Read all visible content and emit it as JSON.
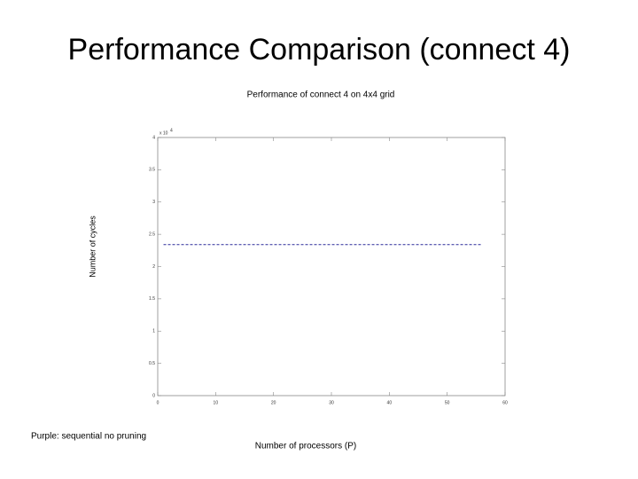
{
  "slide": {
    "title": "Performance Comparison (connect 4)",
    "note": "Purple: sequential no pruning"
  },
  "chart_data": {
    "type": "line",
    "title": "Performance of connect 4 on 4x4 grid",
    "xlabel": "Number of processors (P)",
    "ylabel": "Number of cycles",
    "y_multiplier": {
      "base": "x 10",
      "exponent": "4"
    },
    "x": [
      1,
      56
    ],
    "series": [
      {
        "values": [
          2.34,
          2.34
        ],
        "color": "#2b2b9a",
        "dashed": true
      }
    ],
    "xlim": [
      0,
      60
    ],
    "xticks": [
      0,
      10,
      20,
      30,
      40,
      50,
      60
    ],
    "ylim": [
      0,
      4
    ],
    "yticks": [
      0,
      0.5,
      1,
      1.5,
      2,
      2.5,
      3,
      3.5,
      4
    ]
  }
}
